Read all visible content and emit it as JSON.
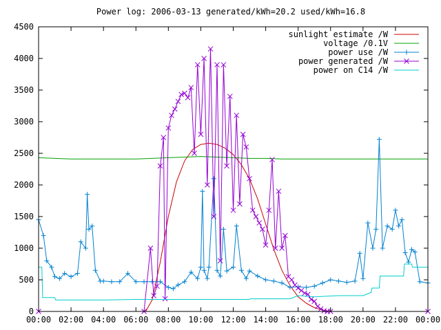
{
  "chart_data": {
    "type": "line",
    "title": "Power log: 2006-03-13 generated/kWh=20.2 used/kWh=16.8",
    "xlabel": "",
    "ylabel": "",
    "xlim": [
      0,
      24
    ],
    "ylim": [
      0,
      4500
    ],
    "x_ticks": [
      "00:00",
      "02:00",
      "04:00",
      "06:00",
      "08:00",
      "10:00",
      "12:00",
      "14:00",
      "16:00",
      "18:00",
      "20:00",
      "22:00",
      "00:00"
    ],
    "y_ticks": [
      "0",
      "500",
      "1000",
      "1500",
      "2000",
      "2500",
      "3000",
      "3500",
      "4000",
      "4500"
    ],
    "legend_position": "top-right",
    "grid": false,
    "series": [
      {
        "name": "sunlight estimate /W",
        "color": "#cc0000",
        "marker": "none",
        "x": [
          6.6,
          7.0,
          7.5,
          8.0,
          8.5,
          9.0,
          9.5,
          10.0,
          10.5,
          11.0,
          11.5,
          12.0,
          12.5,
          13.0,
          13.5,
          14.0,
          14.5,
          15.0,
          15.5,
          16.0,
          16.5,
          17.0,
          17.5,
          18.0
        ],
        "y": [
          0,
          180,
          780,
          1500,
          2050,
          2380,
          2560,
          2640,
          2660,
          2640,
          2580,
          2480,
          2320,
          2100,
          1780,
          1380,
          980,
          650,
          410,
          230,
          130,
          60,
          20,
          0
        ]
      },
      {
        "name": "voltage /0.1V",
        "color": "#00a000",
        "marker": "none",
        "x": [
          0,
          1,
          2,
          3,
          4,
          5,
          6,
          7,
          8,
          9,
          10,
          11,
          12,
          13,
          14,
          15,
          16,
          17,
          18,
          19,
          20,
          21,
          22,
          23,
          24
        ],
        "y": [
          2430,
          2420,
          2410,
          2410,
          2410,
          2410,
          2410,
          2420,
          2430,
          2440,
          2450,
          2440,
          2430,
          2420,
          2420,
          2410,
          2410,
          2410,
          2410,
          2410,
          2410,
          2410,
          2410,
          2410,
          2410
        ]
      },
      {
        "name": "power use /W",
        "color": "#0080d0",
        "marker": "plus",
        "x": [
          0,
          0.3,
          0.5,
          0.8,
          1.0,
          1.3,
          1.6,
          2.0,
          2.4,
          2.6,
          2.9,
          3.0,
          3.1,
          3.3,
          3.5,
          3.8,
          4.0,
          4.5,
          5.0,
          5.5,
          6.0,
          6.5,
          7.0,
          7.5,
          8.0,
          8.3,
          8.6,
          9.0,
          9.4,
          9.8,
          10.0,
          10.1,
          10.2,
          10.4,
          10.5,
          10.8,
          11.0,
          11.2,
          11.4,
          11.6,
          12.0,
          12.2,
          12.5,
          12.8,
          13.0,
          13.5,
          14.0,
          14.5,
          15.0,
          15.5,
          16.0,
          16.5,
          17.0,
          17.5,
          18.0,
          18.5,
          19.0,
          19.5,
          19.8,
          20.0,
          20.3,
          20.6,
          20.8,
          21.0,
          21.2,
          21.5,
          21.8,
          22.0,
          22.2,
          22.4,
          22.6,
          22.8,
          23.0,
          23.2,
          23.5,
          24.0
        ],
        "y": [
          1450,
          1200,
          800,
          700,
          550,
          520,
          600,
          550,
          600,
          1100,
          1000,
          1850,
          1300,
          1350,
          650,
          480,
          480,
          470,
          470,
          600,
          470,
          470,
          470,
          470,
          380,
          360,
          420,
          470,
          620,
          520,
          700,
          1900,
          650,
          520,
          700,
          2100,
          650,
          560,
          1300,
          640,
          700,
          1350,
          650,
          520,
          640,
          560,
          500,
          480,
          450,
          380,
          390,
          380,
          400,
          450,
          500,
          480,
          460,
          480,
          920,
          520,
          1400,
          1000,
          1300,
          2720,
          1000,
          1350,
          1300,
          1600,
          1350,
          1450,
          930,
          780,
          980,
          940,
          470,
          450
        ]
      },
      {
        "name": "power generated /W",
        "color": "#9400d3",
        "marker": "x",
        "x": [
          0,
          6.5,
          6.9,
          7.1,
          7.3,
          7.5,
          7.7,
          7.8,
          8.0,
          8.2,
          8.4,
          8.6,
          8.8,
          9.0,
          9.2,
          9.4,
          9.6,
          9.8,
          10.0,
          10.2,
          10.4,
          10.6,
          10.8,
          11.0,
          11.2,
          11.4,
          11.6,
          11.8,
          12.0,
          12.2,
          12.4,
          12.6,
          12.8,
          13.0,
          13.2,
          13.4,
          13.6,
          13.8,
          14.0,
          14.2,
          14.4,
          14.6,
          14.8,
          15.0,
          15.2,
          15.4,
          15.6,
          15.8,
          16.0,
          16.2,
          16.4,
          16.6,
          16.8,
          17.0,
          17.2,
          17.4,
          17.6,
          17.8,
          18.0,
          24.0
        ],
        "y": [
          0,
          0,
          1000,
          250,
          400,
          2300,
          2750,
          200,
          2900,
          3100,
          3200,
          3320,
          3430,
          3450,
          3380,
          3540,
          2500,
          3900,
          2800,
          4000,
          2000,
          4150,
          1500,
          3900,
          800,
          3900,
          2300,
          3400,
          1600,
          3100,
          1700,
          2800,
          2600,
          2100,
          1600,
          1500,
          1400,
          1300,
          1050,
          1600,
          2400,
          1000,
          1900,
          1000,
          1200,
          550,
          500,
          420,
          370,
          330,
          290,
          270,
          190,
          160,
          80,
          40,
          10,
          0,
          0,
          0
        ]
      },
      {
        "name": "power on C14 /W",
        "color": "#00cccc",
        "marker": "none",
        "x": [
          0,
          0.2,
          0.25,
          1.0,
          1.05,
          4.0,
          6.0,
          8.0,
          10.0,
          12.0,
          13.0,
          13.05,
          15.5,
          16.0,
          17.0,
          18.5,
          20.0,
          20.5,
          20.55,
          21.0,
          21.05,
          22.5,
          22.55,
          23.0,
          23.05,
          24.0
        ],
        "y": [
          700,
          700,
          220,
          220,
          180,
          180,
          190,
          190,
          190,
          190,
          190,
          200,
          200,
          250,
          230,
          250,
          250,
          300,
          370,
          370,
          560,
          560,
          750,
          750,
          700,
          700
        ]
      }
    ]
  }
}
